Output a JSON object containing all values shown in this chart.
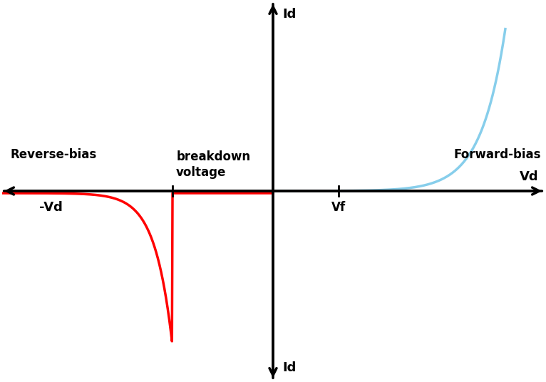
{
  "background_color": "#ffffff",
  "forward_color": "#87CEEB",
  "reverse_color": "#FF0000",
  "axis_color": "#000000",
  "label_id_top": "Id",
  "label_id_bottom": "Id",
  "label_vd_right": "Vd",
  "label_vd_left": "-Vd",
  "label_vf": "Vf",
  "label_forward_bias": "Forward-bias",
  "label_reverse_bias": "Reverse-bias",
  "label_breakdown_line1": "breakdown",
  "label_breakdown_line2": "voltage",
  "xlim": [
    -3.5,
    3.5
  ],
  "ylim": [
    -3.5,
    3.5
  ],
  "vf_x": 0.85,
  "breakdown_x": -1.3,
  "figsize": [
    7.66,
    5.36
  ],
  "dpi": 100
}
